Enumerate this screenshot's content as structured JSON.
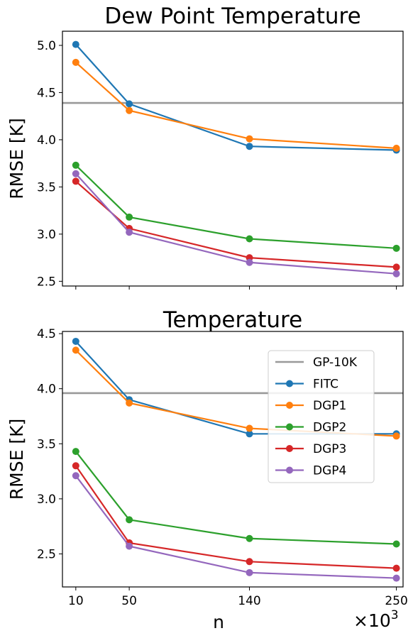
{
  "colors": {
    "GP-10K": "#999999",
    "FITC": "#1f77b4",
    "DGP1": "#ff7f0e",
    "DGP2": "#2ca02c",
    "DGP3": "#d62728",
    "DGP4": "#9467bd"
  },
  "xlabel": "n",
  "x_multiplier": "×10",
  "x_multiplier_exp": "3",
  "chart_data": [
    {
      "type": "line",
      "title": "Dew Point Temperature",
      "xlabel": "",
      "ylabel": "RMSE [K]",
      "x": [
        10,
        50,
        140,
        250
      ],
      "xtick_labels": [],
      "xlim": [
        0,
        255
      ],
      "ylim": [
        2.45,
        5.15
      ],
      "yticks": [
        2.5,
        3.0,
        3.5,
        4.0,
        4.5,
        5.0
      ],
      "ytick_labels": [
        "2.5",
        "3.0",
        "3.5",
        "4.0",
        "4.5",
        "5.0"
      ],
      "baseline": {
        "name": "GP-10K",
        "value": 4.39
      },
      "series": [
        {
          "name": "FITC",
          "values": [
            5.01,
            4.38,
            3.93,
            3.89
          ]
        },
        {
          "name": "DGP1",
          "values": [
            4.82,
            4.31,
            4.01,
            3.91
          ]
        },
        {
          "name": "DGP2",
          "values": [
            3.73,
            3.18,
            2.95,
            2.85
          ]
        },
        {
          "name": "DGP3",
          "values": [
            3.56,
            3.06,
            2.75,
            2.65
          ]
        },
        {
          "name": "DGP4",
          "values": [
            3.64,
            3.02,
            2.7,
            2.58
          ]
        }
      ],
      "grid": false,
      "legend": null
    },
    {
      "type": "line",
      "title": "Temperature",
      "xlabel": "n",
      "ylabel": "RMSE [K]",
      "x": [
        10,
        50,
        140,
        250
      ],
      "xtick_labels": [
        "10",
        "50",
        "140",
        "250"
      ],
      "xlim": [
        0,
        255
      ],
      "ylim": [
        2.2,
        4.52
      ],
      "yticks": [
        2.5,
        3.0,
        3.5,
        4.0,
        4.5
      ],
      "ytick_labels": [
        "2.5",
        "3.0",
        "3.5",
        "4.0",
        "4.5"
      ],
      "baseline": {
        "name": "GP-10K",
        "value": 3.96
      },
      "series": [
        {
          "name": "FITC",
          "values": [
            4.43,
            3.9,
            3.59,
            3.59
          ]
        },
        {
          "name": "DGP1",
          "values": [
            4.35,
            3.87,
            3.64,
            3.57
          ]
        },
        {
          "name": "DGP2",
          "values": [
            3.43,
            2.81,
            2.64,
            2.59
          ]
        },
        {
          "name": "DGP3",
          "values": [
            3.3,
            2.6,
            2.43,
            2.37
          ]
        },
        {
          "name": "DGP4",
          "values": [
            3.21,
            2.57,
            2.33,
            2.28
          ]
        }
      ],
      "grid": false,
      "legend": {
        "placement": "upper-right",
        "entries": [
          "GP-10K",
          "FITC",
          "DGP1",
          "DGP2",
          "DGP3",
          "DGP4"
        ]
      }
    }
  ]
}
